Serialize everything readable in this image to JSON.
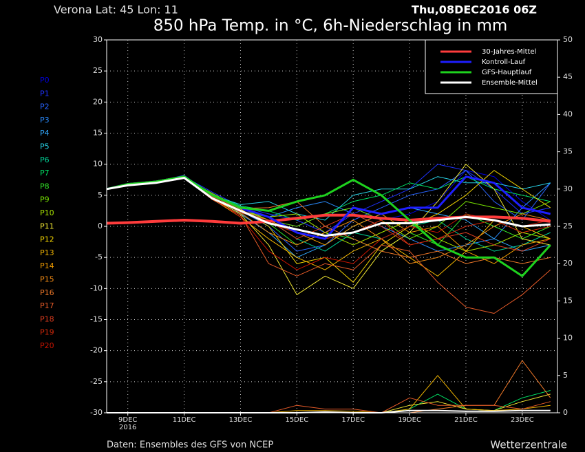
{
  "chart_data": {
    "type": "line",
    "location": "Verona   Lat: 45 Lon: 11",
    "run": "Thu,08DEC2016 06Z",
    "title": "850 hPa Temp. in °C, 6h-Niederschlag in mm",
    "source": "Daten: Ensembles des GFS von NCEP",
    "brand": "Wetterzentrale",
    "year": "2016",
    "x": [
      8.25,
      9,
      10,
      11,
      12,
      13,
      14,
      15,
      16,
      17,
      18,
      19,
      20,
      21,
      22,
      23,
      24
    ],
    "xlim": [
      8.25,
      24.25
    ],
    "xticks": [
      {
        "value": 9,
        "label": "9DEC"
      },
      {
        "value": 11,
        "label": "11DEC"
      },
      {
        "value": 13,
        "label": "13DEC"
      },
      {
        "value": 15,
        "label": "15DEC"
      },
      {
        "value": 17,
        "label": "17DEC"
      },
      {
        "value": 19,
        "label": "19DEC"
      },
      {
        "value": 21,
        "label": "21DEC"
      },
      {
        "value": 23,
        "label": "23DEC"
      }
    ],
    "ylim": [
      -30,
      30
    ],
    "yticks": [
      -30,
      -25,
      -20,
      -15,
      -10,
      -5,
      0,
      5,
      10,
      15,
      20,
      25,
      30
    ],
    "y2lim": [
      0,
      50
    ],
    "y2ticks": [
      0,
      5,
      10,
      15,
      20,
      25,
      30,
      35,
      40,
      45,
      50
    ],
    "grid": true,
    "legend": "upper right",
    "members": [
      {
        "name": "P0",
        "color": "#0000e0",
        "values": [
          6,
          6.7,
          7.1,
          7.9,
          5.2,
          2.8,
          1,
          0,
          2,
          3,
          1,
          2,
          4,
          9,
          8,
          4,
          1
        ]
      },
      {
        "name": "P1",
        "color": "#1e32ff",
        "values": [
          6,
          6.8,
          7.3,
          8,
          5.5,
          3.2,
          2,
          1,
          -1,
          2,
          4,
          6,
          10,
          9,
          6,
          2,
          3
        ]
      },
      {
        "name": "P2",
        "color": "#2864ff",
        "values": [
          6,
          6.7,
          7.2,
          8.2,
          5,
          2.5,
          0,
          -4,
          -3,
          1,
          3,
          5,
          6,
          9,
          4,
          1,
          7
        ]
      },
      {
        "name": "P3",
        "color": "#2a8cff",
        "values": [
          6,
          6.8,
          7,
          7.8,
          4.8,
          3,
          1.5,
          3,
          4,
          2,
          0,
          -2,
          -4,
          -3,
          -2,
          3,
          7
        ]
      },
      {
        "name": "P4",
        "color": "#32aaff",
        "values": [
          6,
          6.6,
          7.2,
          8,
          5.2,
          2,
          -1,
          -5,
          -3,
          0,
          2,
          3,
          2,
          1,
          -2,
          -4,
          -3
        ]
      },
      {
        "name": "P5",
        "color": "#28d2e6",
        "values": [
          6,
          6.9,
          7.1,
          7.9,
          5,
          3.5,
          4,
          2,
          1,
          5,
          6,
          6,
          8,
          7,
          7,
          6,
          7
        ]
      },
      {
        "name": "P6",
        "color": "#00d296",
        "values": [
          6,
          6.7,
          7.3,
          8.1,
          4.6,
          2.2,
          1,
          -2,
          -4,
          -1,
          -2,
          0,
          1,
          -2,
          -4,
          -3,
          -1
        ]
      },
      {
        "name": "P7",
        "color": "#00e064",
        "values": [
          6,
          6.8,
          7,
          7.7,
          5.1,
          3.3,
          2.5,
          1,
          2,
          4,
          5,
          7,
          6,
          8,
          6,
          5,
          4
        ],
        "precip": [
          0,
          0,
          0,
          0,
          0,
          0,
          0,
          0,
          0,
          0,
          0,
          0.5,
          2.5,
          0.5,
          0.3,
          2,
          3
        ]
      },
      {
        "name": "P8",
        "color": "#32e628",
        "values": [
          6,
          6.7,
          7.2,
          8,
          4.9,
          2.6,
          0.5,
          -3,
          -1,
          -2,
          -4,
          -1,
          -3,
          2,
          0,
          -2,
          0
        ]
      },
      {
        "name": "P9",
        "color": "#78e600",
        "values": [
          6,
          6.8,
          7.1,
          7.8,
          5.3,
          3,
          1,
          0,
          2,
          3,
          1,
          -2,
          0,
          4,
          3,
          2,
          4
        ]
      },
      {
        "name": "P10",
        "color": "#aae600",
        "values": [
          6,
          6.7,
          7.2,
          8,
          4.7,
          2.4,
          1.5,
          2,
          -1,
          -3,
          -1,
          1,
          -2,
          -4,
          -3,
          -1,
          -2
        ]
      },
      {
        "name": "P11",
        "color": "#f0e632",
        "values": [
          6,
          6.6,
          7,
          7.9,
          4.5,
          2,
          -3,
          -11,
          -8,
          -10,
          -4,
          -1,
          4,
          10,
          6,
          -2,
          -3
        ],
        "precip": [
          0,
          0,
          0,
          0,
          0,
          0,
          0,
          0,
          0,
          0,
          0,
          1,
          1.5,
          0.5,
          0.3,
          1.5,
          2.5
        ]
      },
      {
        "name": "P12",
        "color": "#f0d200",
        "values": [
          6,
          6.9,
          7.3,
          8.1,
          5,
          2.8,
          0,
          -6,
          -5,
          -9,
          -3,
          0,
          2,
          5,
          9,
          6,
          3
        ]
      },
      {
        "name": "P13",
        "color": "#f0b400",
        "values": [
          6,
          6.7,
          7.1,
          7.8,
          4.4,
          1.5,
          -2,
          -5,
          -7,
          -4,
          -2,
          -5,
          -8,
          -4,
          1,
          0,
          -2
        ],
        "precip": [
          0,
          0,
          0,
          0,
          0,
          0,
          0,
          0.3,
          0.3,
          0.2,
          0,
          0.5,
          5,
          0.5,
          0.3,
          0.5,
          1
        ]
      },
      {
        "name": "P14",
        "color": "#f09c00",
        "values": [
          6,
          6.8,
          7.2,
          8,
          4.9,
          2.6,
          1,
          -1,
          -3,
          0,
          2,
          -1,
          0,
          -4,
          -6,
          -3,
          -2
        ]
      },
      {
        "name": "P15",
        "color": "#f08a14",
        "values": [
          6,
          6.7,
          7,
          7.9,
          5.2,
          2.2,
          -1,
          -3,
          -1,
          1,
          -2,
          -6,
          -5,
          -3,
          0,
          2,
          1
        ]
      },
      {
        "name": "P16",
        "color": "#f07828",
        "values": [
          6,
          6.8,
          7.3,
          8.1,
          4.8,
          2.9,
          3,
          4,
          0,
          -2,
          -4,
          -5,
          -4,
          -6,
          -5,
          -6,
          -5
        ],
        "precip": [
          0,
          0,
          0,
          0,
          0,
          0,
          0,
          0,
          0,
          0,
          0,
          0,
          0.5,
          1,
          1,
          7,
          2
        ]
      },
      {
        "name": "P17",
        "color": "#e65a28",
        "values": [
          6,
          6.7,
          7.1,
          7.8,
          4.3,
          1.8,
          -6,
          -8,
          -6,
          -7,
          -3,
          -4,
          -9,
          -13,
          -14,
          -11,
          -7
        ],
        "precip": [
          0,
          0,
          0,
          0,
          0,
          0,
          0,
          1,
          0.5,
          0.5,
          0,
          2,
          1,
          1,
          1,
          0.5,
          1.5
        ]
      },
      {
        "name": "P18",
        "color": "#dc3c1e",
        "values": [
          6,
          6.8,
          7.2,
          8,
          4.7,
          2.2,
          1,
          -2,
          0,
          2,
          0,
          -3,
          -2,
          -1,
          -3,
          -4,
          -2
        ]
      },
      {
        "name": "P19",
        "color": "#d2280a",
        "values": [
          6,
          6.7,
          7.1,
          7.9,
          5,
          2.5,
          0.5,
          -1,
          -2,
          -1,
          1,
          -3,
          -2,
          0,
          1,
          -1,
          0
        ]
      },
      {
        "name": "P20",
        "color": "#c81400",
        "values": [
          6,
          6.8,
          7.2,
          8,
          4.6,
          1.5,
          -4,
          -7,
          -5,
          -6,
          -2,
          0,
          -1,
          2,
          1,
          0,
          1
        ]
      }
    ],
    "series": [
      {
        "name": "30-Jahres-Mittel",
        "color": "#ff3c3c",
        "values": [
          0.5,
          0.6,
          0.8,
          1,
          0.8,
          0.5,
          0.8,
          1.3,
          1.8,
          1.8,
          1.3,
          1,
          1.3,
          1.5,
          1.5,
          1.3,
          0.8
        ]
      },
      {
        "name": "Kontroll-Lauf",
        "color": "#1e1eff",
        "values": [
          6,
          6.8,
          7.2,
          8,
          5,
          3,
          1.5,
          -1,
          -2,
          3,
          2,
          3,
          3,
          8,
          7,
          3,
          2
        ]
      },
      {
        "name": "GFS-Hauptlauf",
        "color": "#1ed21e",
        "values": [
          6,
          6.8,
          7.2,
          8,
          5,
          3,
          2.5,
          4,
          5,
          7.5,
          5,
          1,
          -3,
          -5,
          -5,
          -8,
          -3
        ]
      },
      {
        "name": "Ensemble-Mittel",
        "color": "#ffffff",
        "values": [
          6,
          6.6,
          7,
          7.8,
          4.5,
          2.5,
          0.5,
          -0.5,
          -1.5,
          -1,
          0.5,
          0.5,
          1,
          1.5,
          1,
          0,
          0.3
        ],
        "precip": [
          0,
          0,
          0,
          0,
          0,
          0,
          0,
          0,
          0.1,
          0,
          0,
          0.3,
          0.3,
          0.2,
          0.2,
          0.3,
          0.3
        ]
      }
    ]
  }
}
